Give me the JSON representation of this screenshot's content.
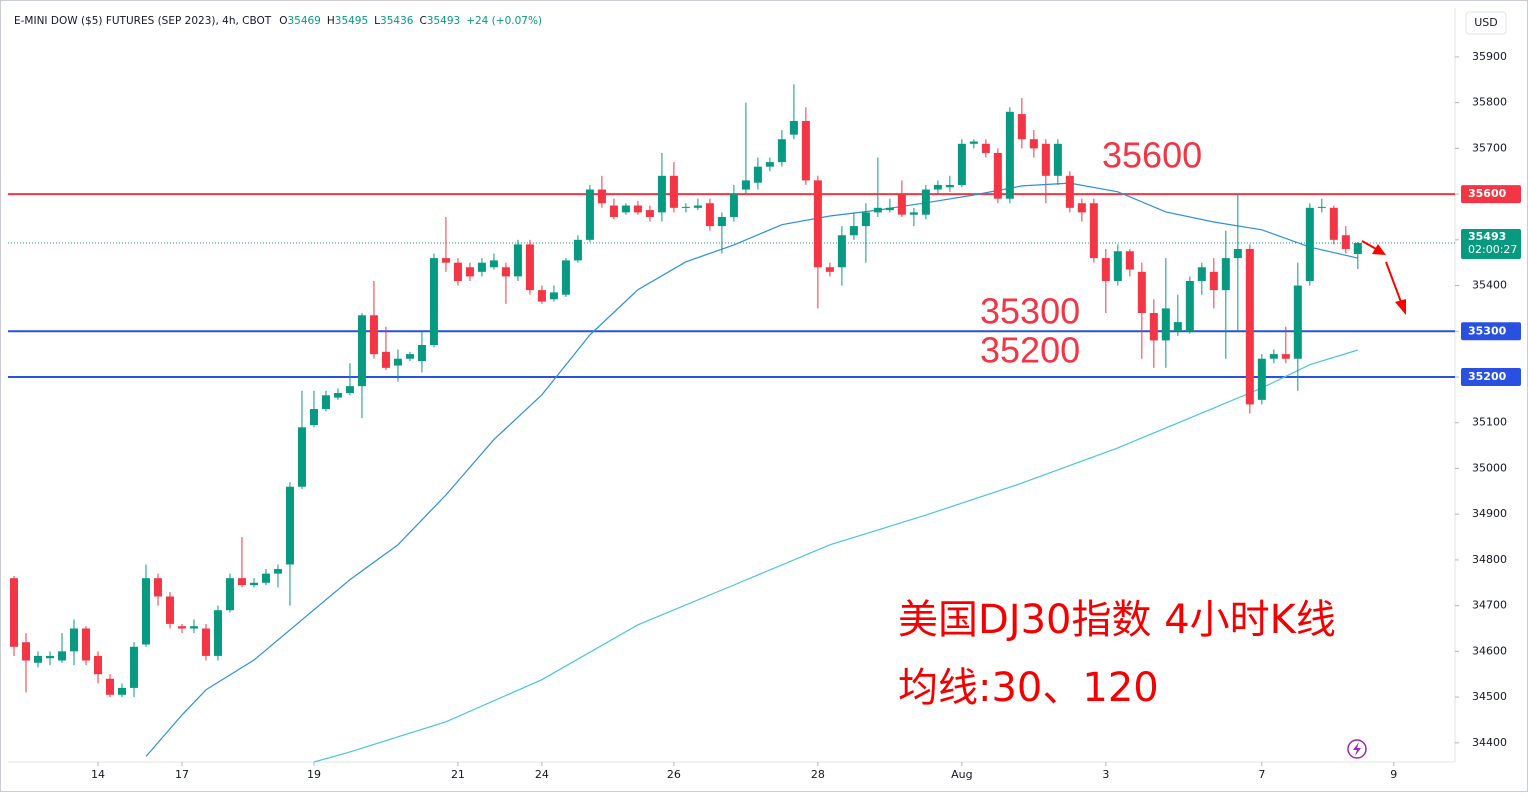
{
  "chart_data": {
    "type": "candlestick",
    "title": "E-MINI DOW ($5) FUTURES (SEP 2023), 4h, CBOT",
    "legend": [
      {
        "label": "O",
        "value": 35469
      },
      {
        "label": "H",
        "value": 35495
      },
      {
        "label": "L",
        "value": 35436
      },
      {
        "label": "C",
        "value": 35493
      }
    ],
    "change": "+24 (+0.07%)",
    "currency": "USD",
    "up_color": "#089981",
    "down_color": "#f23645",
    "candles": [
      [
        34760,
        34765,
        34590,
        34610
      ],
      [
        34620,
        34640,
        34510,
        34580
      ],
      [
        34575,
        34600,
        34565,
        34590
      ],
      [
        34585,
        34600,
        34570,
        34590
      ],
      [
        34580,
        34640,
        34575,
        34600
      ],
      [
        34600,
        34670,
        34570,
        34650
      ],
      [
        34650,
        34655,
        34570,
        34580
      ],
      [
        34590,
        34600,
        34530,
        34550
      ],
      [
        34540,
        34550,
        34500,
        34505
      ],
      [
        34505,
        34530,
        34500,
        34520
      ],
      [
        34520,
        34620,
        34500,
        34610
      ],
      [
        34615,
        34790,
        34610,
        34760
      ],
      [
        34760,
        34770,
        34700,
        34720
      ],
      [
        34720,
        34730,
        34650,
        34660
      ],
      [
        34655,
        34660,
        34640,
        34650
      ],
      [
        34650,
        34670,
        34640,
        34655
      ],
      [
        34650,
        34660,
        34580,
        34590
      ],
      [
        34590,
        34700,
        34580,
        34690
      ],
      [
        34690,
        34770,
        34685,
        34760
      ],
      [
        34760,
        34850,
        34740,
        34745
      ],
      [
        34745,
        34760,
        34740,
        34750
      ],
      [
        34750,
        34780,
        34745,
        34770
      ],
      [
        34770,
        34790,
        34740,
        34780
      ],
      [
        34790,
        34970,
        34700,
        34960
      ],
      [
        34960,
        35170,
        34955,
        35090
      ],
      [
        35095,
        35170,
        35090,
        35130
      ],
      [
        35130,
        35170,
        35125,
        35160
      ],
      [
        35155,
        35175,
        35150,
        35165
      ],
      [
        35165,
        35230,
        35160,
        35180
      ],
      [
        35180,
        35340,
        35110,
        35335
      ],
      [
        35335,
        35410,
        35240,
        35250
      ],
      [
        35255,
        35310,
        35215,
        35220
      ],
      [
        35225,
        35260,
        35190,
        35240
      ],
      [
        35240,
        35255,
        35235,
        35250
      ],
      [
        35235,
        35300,
        35210,
        35270
      ],
      [
        35270,
        35470,
        35265,
        35460
      ],
      [
        35460,
        35550,
        35430,
        35450
      ],
      [
        35450,
        35460,
        35400,
        35410
      ],
      [
        35440,
        35450,
        35410,
        35420
      ],
      [
        35430,
        35460,
        35420,
        35450
      ],
      [
        35440,
        35470,
        35435,
        35455
      ],
      [
        35440,
        35450,
        35360,
        35420
      ],
      [
        35420,
        35500,
        35410,
        35490
      ],
      [
        35490,
        35500,
        35380,
        35390
      ],
      [
        35390,
        35400,
        35360,
        35365
      ],
      [
        35370,
        35400,
        35365,
        35385
      ],
      [
        35380,
        35460,
        35375,
        35455
      ],
      [
        35455,
        35510,
        35450,
        35500
      ],
      [
        35500,
        35620,
        35495,
        35610
      ],
      [
        35610,
        35640,
        35570,
        35580
      ],
      [
        35575,
        35590,
        35545,
        35550
      ],
      [
        35560,
        35580,
        35555,
        35575
      ],
      [
        35575,
        35585,
        35555,
        35560
      ],
      [
        35565,
        35575,
        35540,
        35550
      ],
      [
        35560,
        35690,
        35540,
        35640
      ],
      [
        35640,
        35670,
        35560,
        35570
      ],
      [
        35570,
        35580,
        35560,
        35572
      ],
      [
        35570,
        35590,
        35565,
        35575
      ],
      [
        35580,
        35590,
        35520,
        35530
      ],
      [
        35530,
        35560,
        35470,
        35550
      ],
      [
        35550,
        35620,
        35540,
        35600
      ],
      [
        35610,
        35800,
        35600,
        35630
      ],
      [
        35625,
        35680,
        35610,
        35660
      ],
      [
        35660,
        35680,
        35650,
        35670
      ],
      [
        35670,
        35740,
        35660,
        35720
      ],
      [
        35730,
        35840,
        35720,
        35760
      ],
      [
        35760,
        35790,
        35620,
        35630
      ],
      [
        35630,
        35640,
        35350,
        35440
      ],
      [
        35440,
        35450,
        35420,
        35430
      ],
      [
        35440,
        35530,
        35400,
        35510
      ],
      [
        35510,
        35560,
        35500,
        35530
      ],
      [
        35530,
        35580,
        35450,
        35560
      ],
      [
        35560,
        35680,
        35550,
        35570
      ],
      [
        35565,
        35590,
        35560,
        35570
      ],
      [
        35600,
        35630,
        35550,
        35555
      ],
      [
        35555,
        35570,
        35530,
        35560
      ],
      [
        35555,
        35620,
        35545,
        35610
      ],
      [
        35610,
        35630,
        35600,
        35620
      ],
      [
        35615,
        35640,
        35605,
        35620
      ],
      [
        35620,
        35720,
        35615,
        35710
      ],
      [
        35710,
        35720,
        35700,
        35715
      ],
      [
        35710,
        35720,
        35680,
        35690
      ],
      [
        35690,
        35700,
        35580,
        35590
      ],
      [
        35590,
        35790,
        35580,
        35780
      ],
      [
        35775,
        35810,
        35700,
        35720
      ],
      [
        35720,
        35740,
        35680,
        35700
      ],
      [
        35710,
        35720,
        35580,
        35640
      ],
      [
        35640,
        35720,
        35620,
        35710
      ],
      [
        35640,
        35650,
        35560,
        35570
      ],
      [
        35580,
        35590,
        35540,
        35560
      ],
      [
        35580,
        35590,
        35450,
        35460
      ],
      [
        35460,
        35480,
        35340,
        35410
      ],
      [
        35410,
        35490,
        35400,
        35475
      ],
      [
        35475,
        35480,
        35420,
        35435
      ],
      [
        35430,
        35450,
        35240,
        35340
      ],
      [
        35340,
        35370,
        35220,
        35280
      ],
      [
        35280,
        35460,
        35220,
        35350
      ],
      [
        35300,
        35380,
        35290,
        35320
      ],
      [
        35300,
        35420,
        35295,
        35410
      ],
      [
        35410,
        35450,
        35380,
        35440
      ],
      [
        35430,
        35460,
        35350,
        35390
      ],
      [
        35390,
        35520,
        35240,
        35460
      ],
      [
        35460,
        35600,
        35300,
        35480
      ],
      [
        35480,
        35490,
        35120,
        35140
      ],
      [
        35150,
        35250,
        35140,
        35240
      ],
      [
        35240,
        35260,
        35230,
        35250
      ],
      [
        35250,
        35310,
        35230,
        35240
      ],
      [
        35240,
        35450,
        35170,
        35400
      ],
      [
        35410,
        35580,
        35400,
        35570
      ],
      [
        35570,
        35590,
        35560,
        35572
      ],
      [
        35570,
        35575,
        35490,
        35500
      ],
      [
        35510,
        35530,
        35470,
        35480
      ],
      [
        35469,
        35495,
        35436,
        35493
      ]
    ],
    "moving_averages": [
      {
        "color": "#2e8fd8",
        "x": [
          11,
          14,
          16,
          20,
          24,
          28,
          32,
          36,
          40,
          44,
          48,
          52,
          56,
          60,
          64,
          68,
          72,
          76,
          80,
          84,
          88,
          92,
          96,
          100,
          104,
          108,
          112
        ],
        "values": [
          34370,
          34461,
          34516,
          34581,
          34669,
          34757,
          34833,
          34942,
          35063,
          35161,
          35292,
          35391,
          35452,
          35489,
          35533,
          35552,
          35565,
          35581,
          35598,
          35618,
          35624,
          35605,
          35561,
          35539,
          35522,
          35484,
          35460
        ]
      },
      {
        "color": "#4cc4dc",
        "x": [
          25,
          28,
          36,
          44,
          52,
          60,
          68,
          76,
          84,
          92,
          100,
          104,
          108,
          112
        ],
        "values": [
          34358,
          34380,
          34446,
          34538,
          34658,
          34745,
          34833,
          34898,
          34968,
          35045,
          35132,
          35176,
          35227,
          35259
        ]
      }
    ],
    "levels": [
      {
        "value": 35600,
        "color": "#f23645"
      },
      {
        "value": 35300,
        "color": "#2950e0"
      },
      {
        "value": 35200,
        "color": "#2950e0"
      }
    ],
    "last_price": 35493,
    "countdown": "02:00:27",
    "annotations": [
      "美国DJ30指数 4小时K线",
      "均线:30、120"
    ],
    "xlim": [
      -0.5,
      120.1
    ],
    "xticks": [
      {
        "value": 7,
        "label": "14"
      },
      {
        "value": 14,
        "label": "17"
      },
      {
        "value": 25,
        "label": "19"
      },
      {
        "value": 37,
        "label": "21"
      },
      {
        "value": 44,
        "label": "24"
      },
      {
        "value": 55,
        "label": "26"
      },
      {
        "value": 67,
        "label": "28"
      },
      {
        "value": 79,
        "label": "Aug"
      },
      {
        "value": 91,
        "label": "3"
      },
      {
        "value": 104,
        "label": "7"
      },
      {
        "value": 115,
        "label": "9"
      }
    ],
    "ylim": [
      34358,
      36007
    ],
    "yticks": [
      34400,
      34500,
      34600,
      34700,
      34800,
      34900,
      35000,
      35100,
      35200,
      35300,
      35400,
      35500,
      35600,
      35700,
      35800,
      35900
    ],
    "grid": false
  }
}
